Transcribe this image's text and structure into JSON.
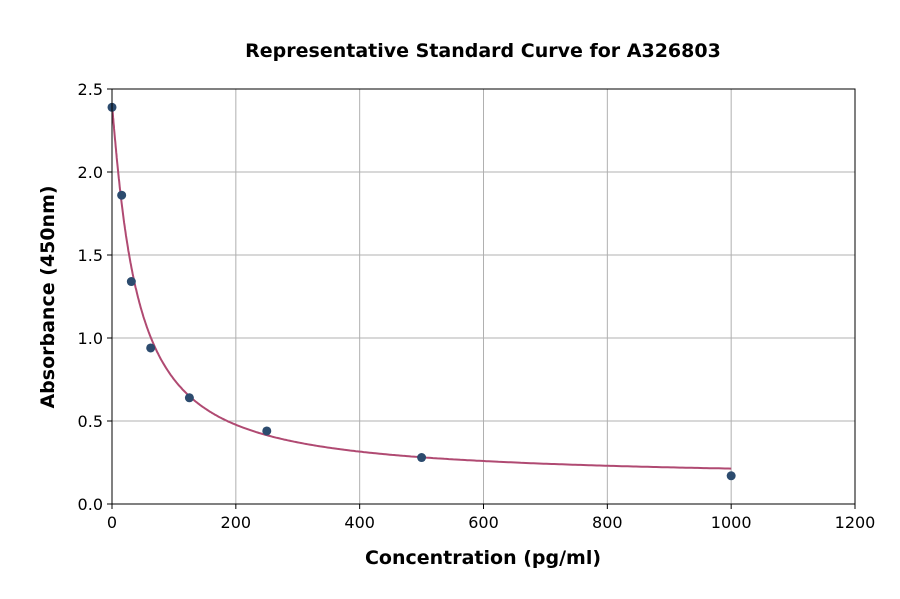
{
  "chart_data": {
    "type": "scatter",
    "title": "Representative Standard Curve for A326803",
    "xlabel": "Concentration (pg/ml)",
    "ylabel": "Absorbance (450nm)",
    "xlim": [
      0,
      1200
    ],
    "ylim": [
      0,
      2.5
    ],
    "xticks": [
      0,
      200,
      400,
      600,
      800,
      1000,
      1200
    ],
    "yticks": [
      0.0,
      0.5,
      1.0,
      1.5,
      2.0,
      2.5
    ],
    "xtick_labels": [
      "0",
      "200",
      "400",
      "600",
      "800",
      "1000",
      "1200"
    ],
    "ytick_labels": [
      "0.0",
      "0.5",
      "1.0",
      "1.5",
      "2.0",
      "2.5"
    ],
    "grid": true,
    "points": {
      "x": [
        0,
        15.6,
        31.25,
        62.5,
        125,
        250,
        500,
        1000
      ],
      "y": [
        2.39,
        1.86,
        1.34,
        0.94,
        0.64,
        0.44,
        0.28,
        0.17
      ]
    },
    "fit_curve": {
      "type": "4PL",
      "x_range": [
        0,
        1000
      ]
    },
    "colors": {
      "points": "#2c4b6e",
      "curve": "#b04a72",
      "grid": "#b0b0b0"
    }
  }
}
